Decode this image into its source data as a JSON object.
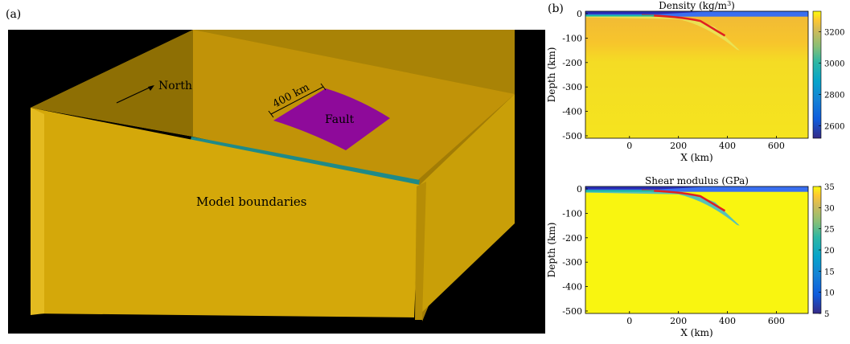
{
  "panel_a": {
    "label": "(a)",
    "north_label": "North",
    "scale_label": "400 km",
    "fault_label": "Fault",
    "boundaries_label": "Model boundaries",
    "colors": {
      "background": "#000000",
      "box": "#d4a80a",
      "fault": "#8e0a9a",
      "strip": "#1f8a88"
    }
  },
  "panel_b": {
    "label": "(b)"
  },
  "chart_data": [
    {
      "type": "heatmap",
      "title": "Density (kg/m³)",
      "title_main": "Density (kg/m",
      "title_sup": "3",
      "title_end": ")",
      "xlabel": "X  (km)",
      "ylabel": "Depth (km)",
      "xlim": [
        -180,
        730
      ],
      "ylim": [
        -510,
        10
      ],
      "xticks": [
        0,
        200,
        400,
        600
      ],
      "yticks": [
        0,
        -100,
        -200,
        -300,
        -400,
        -500
      ],
      "colorbar": {
        "min": 2520,
        "max": 3330,
        "ticks": [
          2600,
          2800,
          3000,
          3200
        ]
      },
      "dominant_value": 3250,
      "colormap": "parula"
    },
    {
      "type": "heatmap",
      "title": "Shear modulus (GPa)",
      "xlabel": "X  (km)",
      "ylabel": "Depth (km)",
      "xlim": [
        -180,
        730
      ],
      "ylim": [
        -510,
        10
      ],
      "xticks": [
        0,
        200,
        400,
        600
      ],
      "yticks": [
        0,
        -100,
        -200,
        -300,
        -400,
        -500
      ],
      "colorbar": {
        "min": 5,
        "max": 35,
        "ticks": [
          5,
          10,
          15,
          20,
          25,
          30,
          35
        ]
      },
      "dominant_value": 34,
      "colormap": "parula"
    }
  ]
}
